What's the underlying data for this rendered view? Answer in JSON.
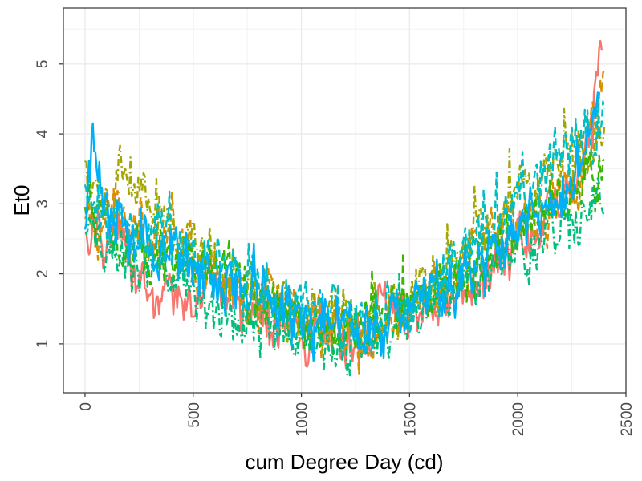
{
  "chart_data": {
    "type": "line",
    "title": "",
    "xlabel": "cum Degree Day (cd)",
    "ylabel": "Et0",
    "xlim": [
      -100,
      2500
    ],
    "ylim": [
      0.3,
      5.8
    ],
    "x_ticks": [
      0,
      500,
      1000,
      1500,
      2000,
      2500
    ],
    "x_tick_labels": [
      "0",
      "500",
      "1000",
      "1500",
      "2000",
      "2500"
    ],
    "y_ticks": [
      1,
      2,
      3,
      4,
      5
    ],
    "y_tick_labels": [
      "1",
      "2",
      "3",
      "4",
      "5"
    ],
    "x_minor_ticks": [
      250,
      750,
      1250,
      1750,
      2250
    ],
    "y_minor_ticks": [
      1.5,
      2.5,
      3.5,
      4.5,
      5.5
    ],
    "grid": true,
    "legend": "none",
    "series": [
      {
        "color": "#F8766D",
        "dash": "solid",
        "x_range": [
          0,
          2390
        ],
        "profile": [
          [
            0,
            2.5
          ],
          [
            150,
            2.6
          ],
          [
            300,
            1.9
          ],
          [
            400,
            1.4
          ],
          [
            600,
            1.8
          ],
          [
            800,
            1.4
          ],
          [
            1000,
            1.1
          ],
          [
            1200,
            1.05
          ],
          [
            1400,
            1.3
          ],
          [
            1600,
            1.6
          ],
          [
            1800,
            1.9
          ],
          [
            2000,
            2.3
          ],
          [
            2200,
            3.0
          ],
          [
            2300,
            3.5
          ],
          [
            2390,
            5.4
          ]
        ]
      },
      {
        "color": "#D89000",
        "dash": "dashed",
        "x_range": [
          0,
          2400
        ],
        "profile": [
          [
            0,
            2.6
          ],
          [
            150,
            2.8
          ],
          [
            300,
            2.5
          ],
          [
            400,
            2.8
          ],
          [
            500,
            2.3
          ],
          [
            700,
            1.8
          ],
          [
            900,
            1.5
          ],
          [
            1100,
            1.2
          ],
          [
            1300,
            1.1
          ],
          [
            1500,
            1.4
          ],
          [
            1700,
            2.0
          ],
          [
            1900,
            2.6
          ],
          [
            2100,
            2.8
          ],
          [
            2250,
            3.2
          ],
          [
            2400,
            4.6
          ]
        ]
      },
      {
        "color": "#A3A500",
        "dash": "dotdash",
        "x_range": [
          0,
          2400
        ],
        "profile": [
          [
            0,
            3.3
          ],
          [
            100,
            3.0
          ],
          [
            180,
            3.6
          ],
          [
            300,
            3.0
          ],
          [
            400,
            2.6
          ],
          [
            600,
            2.1
          ],
          [
            800,
            1.7
          ],
          [
            1000,
            1.4
          ],
          [
            1200,
            1.3
          ],
          [
            1400,
            1.4
          ],
          [
            1600,
            1.8
          ],
          [
            1800,
            2.4
          ],
          [
            2000,
            3.0
          ],
          [
            2200,
            3.6
          ],
          [
            2400,
            3.8
          ]
        ]
      },
      {
        "color": "#39B600",
        "dash": "dashed",
        "x_range": [
          0,
          2400
        ],
        "profile": [
          [
            0,
            2.9
          ],
          [
            200,
            2.5
          ],
          [
            400,
            2.2
          ],
          [
            600,
            2.0
          ],
          [
            800,
            1.7
          ],
          [
            1000,
            1.5
          ],
          [
            1200,
            1.25
          ],
          [
            1400,
            1.3
          ],
          [
            1600,
            1.7
          ],
          [
            1800,
            2.1
          ],
          [
            2000,
            2.7
          ],
          [
            2200,
            3.1
          ],
          [
            2400,
            3.5
          ]
        ]
      },
      {
        "color": "#00BF7D",
        "dash": "dotdash",
        "x_range": [
          0,
          2400
        ],
        "profile": [
          [
            0,
            2.5
          ],
          [
            200,
            2.3
          ],
          [
            400,
            2.0
          ],
          [
            600,
            1.6
          ],
          [
            800,
            1.3
          ],
          [
            1000,
            1.1
          ],
          [
            1200,
            0.95
          ],
          [
            1400,
            1.1
          ],
          [
            1600,
            1.5
          ],
          [
            1800,
            1.9
          ],
          [
            2000,
            2.3
          ],
          [
            2200,
            2.7
          ],
          [
            2400,
            3.0
          ]
        ]
      },
      {
        "color": "#00BFC4",
        "dash": "dashed",
        "x_range": [
          0,
          2400
        ],
        "profile": [
          [
            0,
            3.0
          ],
          [
            100,
            2.8
          ],
          [
            300,
            2.6
          ],
          [
            500,
            2.3
          ],
          [
            700,
            2.0
          ],
          [
            900,
            1.6
          ],
          [
            1100,
            1.4
          ],
          [
            1300,
            1.3
          ],
          [
            1500,
            1.6
          ],
          [
            1700,
            2.1
          ],
          [
            1900,
            2.7
          ],
          [
            2100,
            3.4
          ],
          [
            2300,
            3.9
          ],
          [
            2400,
            4.2
          ]
        ]
      },
      {
        "color": "#00B0F6",
        "dash": "solid",
        "x_range": [
          0,
          2380
        ],
        "profile": [
          [
            0,
            2.8
          ],
          [
            30,
            3.9
          ],
          [
            100,
            2.7
          ],
          [
            300,
            2.5
          ],
          [
            450,
            2.3
          ],
          [
            600,
            2.0
          ],
          [
            800,
            1.6
          ],
          [
            1000,
            1.3
          ],
          [
            1200,
            1.15
          ],
          [
            1400,
            1.2
          ],
          [
            1500,
            1.6
          ],
          [
            1700,
            1.9
          ],
          [
            1900,
            2.3
          ],
          [
            2100,
            2.9
          ],
          [
            2300,
            3.5
          ],
          [
            2380,
            4.8
          ]
        ]
      }
    ]
  }
}
